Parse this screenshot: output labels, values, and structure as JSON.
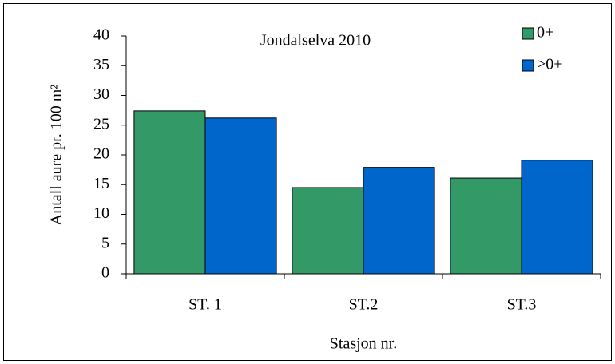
{
  "chart_data": {
    "type": "bar",
    "title": "Jondalselva 2010",
    "xlabel": "Stasjon nr.",
    "ylabel": "Antall aure pr. 100 m²",
    "categories": [
      "ST. 1",
      "ST.2",
      "ST.3"
    ],
    "series": [
      {
        "name": "0+",
        "color": "#339966",
        "values": [
          27.4,
          14.5,
          16.1
        ]
      },
      {
        "name": ">0+",
        "color": "#0066cc",
        "values": [
          26.2,
          17.9,
          19.1
        ]
      }
    ],
    "ylim": [
      0,
      40
    ],
    "yticks": [
      0,
      5,
      10,
      15,
      20,
      25,
      30,
      35,
      40
    ],
    "grid": false,
    "legend": "top-right"
  }
}
